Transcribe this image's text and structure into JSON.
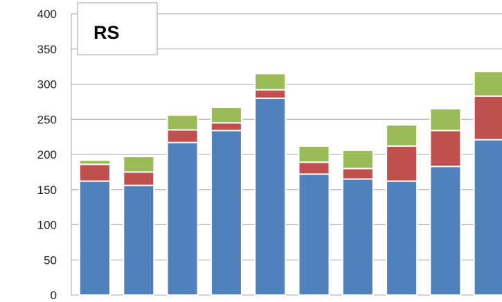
{
  "chart_data": {
    "type": "bar",
    "stacked": true,
    "title": "RS",
    "xlabel": "",
    "ylabel": "",
    "ylim": [
      0,
      400
    ],
    "y_ticks": [
      "0",
      "50",
      "100",
      "150",
      "200",
      "250",
      "300",
      "350",
      "400"
    ],
    "grid": true,
    "categories": [
      "",
      "",
      "",
      "",
      "",
      "",
      "",
      "",
      "",
      ""
    ],
    "series": [
      {
        "color": "#4F81BD",
        "values": [
          162,
          156,
          217,
          234,
          280,
          172,
          165,
          162,
          183,
          221
        ]
      },
      {
        "color": "#C0504D",
        "values": [
          24,
          19,
          18,
          11,
          12,
          17,
          15,
          50,
          51,
          62
        ]
      },
      {
        "color": "#9BBB59",
        "values": [
          6,
          22,
          21,
          22,
          23,
          23,
          26,
          30,
          31,
          35
        ]
      }
    ]
  }
}
